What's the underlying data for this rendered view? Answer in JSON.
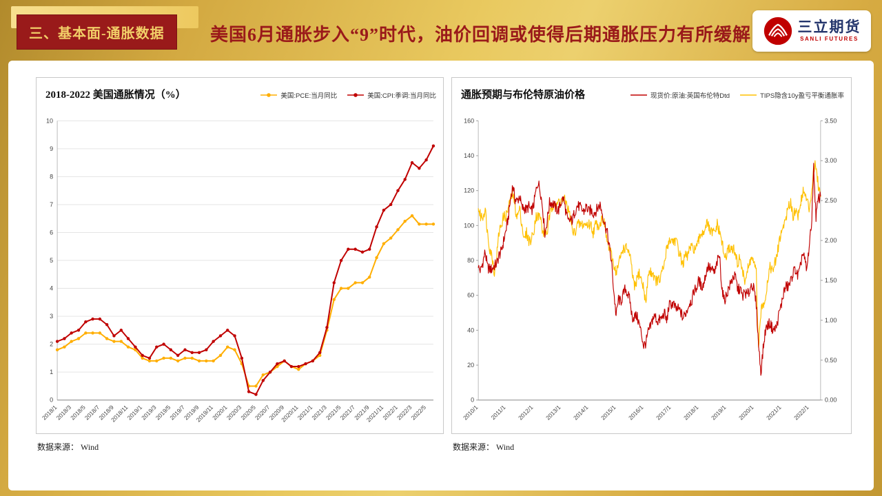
{
  "header": {
    "section_label": "三、基本面-通胀数据",
    "title": "美国6月通胀步入“9”时代，油价回调或使得后期通胀压力有所缓解",
    "logo": {
      "name_cn": "三立期货",
      "name_en": "SANLI FUTURES"
    }
  },
  "colors": {
    "accent_red": "#9a1a1a",
    "brand_red": "#c00000",
    "gold": "#d9ae45",
    "series_yellow": "#FFAE00",
    "series_red": "#C00000"
  },
  "chart_data": [
    {
      "type": "line",
      "title": "2018-2022 美国通胀情况（%）",
      "x_labels": [
        "2018/1",
        "2018/3",
        "2018/5",
        "2018/7",
        "2018/9",
        "2018/11",
        "2019/1",
        "2019/3",
        "2019/5",
        "2019/7",
        "2019/9",
        "2019/11",
        "2020/1",
        "2020/3",
        "2020/5",
        "2020/7",
        "2020/9",
        "2020/11",
        "2021/1",
        "2021/3",
        "2021/5",
        "2021/7",
        "2021/9",
        "2021/11",
        "2022/1",
        "2022/3",
        "2022/5"
      ],
      "x_label_every": 2,
      "ylim": [
        0,
        10
      ],
      "yticks": [
        0,
        1,
        2,
        3,
        4,
        5,
        6,
        7,
        8,
        9,
        10
      ],
      "grid": true,
      "markers": true,
      "line_width": 2,
      "legend_position": "top-right",
      "series": [
        {
          "name": "美国:PCE:当月同比",
          "color": "#FFAE00",
          "values": [
            1.8,
            1.9,
            2.1,
            2.2,
            2.4,
            2.4,
            2.4,
            2.2,
            2.1,
            2.1,
            1.9,
            1.8,
            1.5,
            1.4,
            1.4,
            1.5,
            1.5,
            1.4,
            1.5,
            1.5,
            1.4,
            1.4,
            1.4,
            1.6,
            1.9,
            1.8,
            1.3,
            0.5,
            0.5,
            0.9,
            1.0,
            1.2,
            1.4,
            1.2,
            1.1,
            1.3,
            1.4,
            1.6,
            2.5,
            3.6,
            4.0,
            4.0,
            4.2,
            4.2,
            4.4,
            5.1,
            5.6,
            5.8,
            6.1,
            6.4,
            6.6,
            6.3,
            6.3,
            6.3
          ]
        },
        {
          "name": "美国:CPI:季调:当月同比",
          "color": "#C00000",
          "values": [
            2.1,
            2.2,
            2.4,
            2.5,
            2.8,
            2.9,
            2.9,
            2.7,
            2.3,
            2.5,
            2.2,
            1.9,
            1.6,
            1.5,
            1.9,
            2.0,
            1.8,
            1.6,
            1.8,
            1.7,
            1.7,
            1.8,
            2.1,
            2.3,
            2.5,
            2.3,
            1.5,
            0.3,
            0.2,
            0.7,
            1.0,
            1.3,
            1.4,
            1.2,
            1.2,
            1.3,
            1.4,
            1.7,
            2.6,
            4.2,
            5.0,
            5.4,
            5.4,
            5.3,
            5.4,
            6.2,
            6.8,
            7.0,
            7.5,
            7.9,
            8.5,
            8.3,
            8.6,
            9.1
          ]
        }
      ],
      "source": "数据来源： Wind"
    },
    {
      "type": "line",
      "title": "通胀预期与布伦特原油价格",
      "x_labels": [
        "2010/1",
        "2011/1",
        "2012/1",
        "2013/1",
        "2014/1",
        "2015/1",
        "2016/1",
        "2017/1",
        "2018/1",
        "2019/1",
        "2020/1",
        "2021/1",
        "2022/1"
      ],
      "x_label_every": 12,
      "ylim_left": [
        0,
        160
      ],
      "yticks_left": [
        0,
        20,
        40,
        60,
        80,
        100,
        120,
        140,
        160
      ],
      "ylim_right": [
        0,
        3.5
      ],
      "yticks_right": [
        0,
        0.5,
        1,
        1.5,
        2,
        2.5,
        3,
        3.5
      ],
      "grid": false,
      "markers": false,
      "line_width": 1.15,
      "noise_subdiv": 5,
      "draw_reverse": true,
      "legend_position": "top-right",
      "series": [
        {
          "name": "现货价:原油:英国布伦特Dtd",
          "color": "#C00000",
          "axis": "left",
          "values": [
            76,
            74,
            79,
            85,
            76,
            75,
            75,
            77,
            78,
            83,
            85,
            91,
            97,
            104,
            115,
            123,
            115,
            114,
            117,
            110,
            110,
            109,
            111,
            108,
            111,
            119,
            125,
            120,
            110,
            95,
            103,
            113,
            113,
            112,
            109,
            109,
            113,
            116,
            109,
            102,
            103,
            103,
            108,
            111,
            111,
            109,
            108,
            111,
            108,
            109,
            107,
            108,
            110,
            112,
            107,
            101,
            97,
            88,
            79,
            62,
            48,
            58,
            56,
            60,
            64,
            61,
            57,
            47,
            48,
            48,
            44,
            38,
            31,
            33,
            39,
            42,
            47,
            48,
            45,
            46,
            47,
            50,
            45,
            54,
            55,
            55,
            52,
            52,
            51,
            47,
            49,
            52,
            56,
            57,
            63,
            64,
            69,
            65,
            66,
            72,
            77,
            75,
            74,
            73,
            79,
            83,
            65,
            57,
            60,
            64,
            67,
            71,
            70,
            63,
            64,
            59,
            62,
            60,
            62,
            67,
            63,
            55,
            32,
            16,
            29,
            40,
            43,
            44,
            41,
            40,
            43,
            50,
            55,
            62,
            65,
            65,
            68,
            73,
            75,
            71,
            74,
            84,
            81,
            74,
            88,
            99,
            133,
            105,
            115,
            117
          ]
        },
        {
          "name": "TIPS隐含10y盈亏平衡通胀率",
          "color": "#FFC000",
          "axis": "right",
          "values": [
            2.4,
            2.3,
            2.3,
            2.4,
            2.1,
            1.9,
            1.8,
            1.6,
            1.8,
            2.1,
            2.2,
            2.3,
            2.3,
            2.4,
            2.5,
            2.6,
            2.4,
            2.3,
            2.4,
            2.2,
            2.0,
            2.1,
            2.0,
            2.0,
            2.1,
            2.3,
            2.3,
            2.3,
            2.1,
            2.1,
            2.1,
            2.3,
            2.4,
            2.5,
            2.4,
            2.5,
            2.5,
            2.5,
            2.5,
            2.4,
            2.3,
            2.1,
            2.1,
            2.2,
            2.2,
            2.2,
            2.2,
            2.2,
            2.2,
            2.2,
            2.1,
            2.2,
            2.2,
            2.2,
            2.3,
            2.2,
            2.0,
            1.9,
            1.8,
            1.7,
            1.6,
            1.7,
            1.8,
            1.9,
            1.9,
            1.9,
            1.8,
            1.6,
            1.4,
            1.5,
            1.6,
            1.5,
            1.4,
            1.2,
            1.6,
            1.6,
            1.6,
            1.5,
            1.5,
            1.5,
            1.6,
            1.7,
            1.9,
            2.0,
            2.0,
            2.0,
            2.0,
            1.9,
            1.8,
            1.7,
            1.8,
            1.8,
            1.9,
            1.9,
            1.9,
            1.9,
            2.0,
            2.1,
            2.1,
            2.2,
            2.2,
            2.1,
            2.1,
            2.1,
            2.2,
            2.1,
            2.0,
            1.8,
            1.8,
            1.9,
            1.9,
            1.9,
            1.8,
            1.7,
            1.8,
            1.6,
            1.5,
            1.6,
            1.7,
            1.8,
            1.7,
            1.6,
            0.6,
            1.1,
            1.2,
            1.3,
            1.5,
            1.7,
            1.6,
            1.7,
            1.8,
            2.0,
            2.1,
            2.2,
            2.3,
            2.4,
            2.5,
            2.3,
            2.4,
            2.3,
            2.4,
            2.6,
            2.6,
            2.5,
            2.4,
            2.6,
            2.9,
            2.95,
            2.7,
            2.55
          ]
        }
      ],
      "source": "数据来源： Wind"
    }
  ]
}
